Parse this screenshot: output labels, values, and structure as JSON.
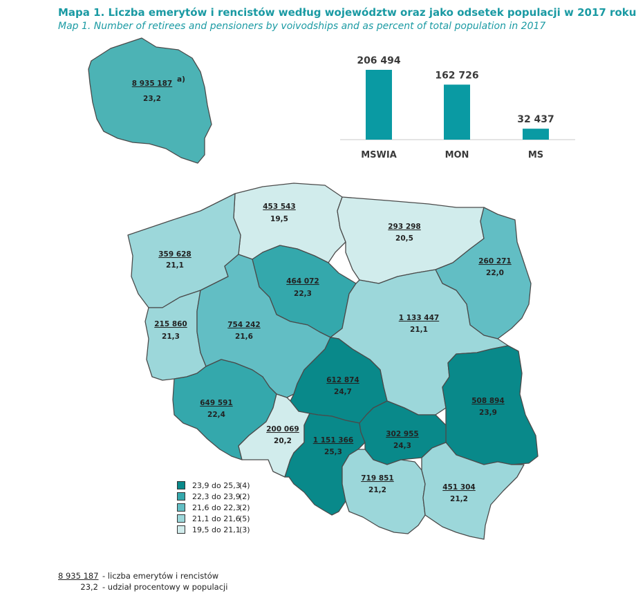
{
  "header": {
    "title_pl": "Mapa 1. Liczba emerytów i rencistów według województw oraz jako odsetek populacji w 2017 roku",
    "title_en": "Map 1. Number of retirees and pensioners by voivodships and as percent of total population in 2017"
  },
  "inset": {
    "count": "8 935 187",
    "pct": "23,2",
    "note": "a)"
  },
  "colors": {
    "class1": "#09898a",
    "class2": "#34a8ac",
    "class3": "#62bec4",
    "class4": "#9cd7da",
    "class5": "#d1ecec",
    "inset": "#4cb3b5",
    "bar": "#0a9aa3"
  },
  "chart_data": {
    "type": "bar",
    "categories": [
      "MSWIA",
      "MON",
      "MS"
    ],
    "values": [
      206494,
      162726,
      32437
    ],
    "labels": [
      "206 494",
      "162 726",
      "32 437"
    ],
    "ylim": [
      0,
      206494
    ]
  },
  "regions": [
    {
      "count": "453 543",
      "pct": "19,5",
      "class": "class5"
    },
    {
      "count": "293 298",
      "pct": "20,5",
      "class": "class5"
    },
    {
      "count": "359 628",
      "pct": "21,1",
      "class": "class4"
    },
    {
      "count": "464 072",
      "pct": "22,3",
      "class": "class2"
    },
    {
      "count": "260 271",
      "pct": "22,0",
      "class": "class3"
    },
    {
      "count": "215 860",
      "pct": "21,3",
      "class": "class4"
    },
    {
      "count": "754 242",
      "pct": "21,6",
      "class": "class3"
    },
    {
      "count": "1 133 447",
      "pct": "21,1",
      "class": "class4"
    },
    {
      "count": "612 874",
      "pct": "24,7",
      "class": "class1"
    },
    {
      "count": "508 894",
      "pct": "23,9",
      "class": "class1"
    },
    {
      "count": "649 591",
      "pct": "22,4",
      "class": "class2"
    },
    {
      "count": "200 069",
      "pct": "20,2",
      "class": "class5"
    },
    {
      "count": "1 151 366",
      "pct": "25,3",
      "class": "class1"
    },
    {
      "count": "302 955",
      "pct": "24,3",
      "class": "class1"
    },
    {
      "count": "719 851",
      "pct": "21,2",
      "class": "class4"
    },
    {
      "count": "451 304",
      "pct": "21,2",
      "class": "class4"
    }
  ],
  "legend": [
    {
      "range": "23,9 do 25,3",
      "n": "(4)",
      "class": "class1"
    },
    {
      "range": "22,3 do 23,9",
      "n": "(2)",
      "class": "class2"
    },
    {
      "range": "21,6 do 22,3",
      "n": "(2)",
      "class": "class3"
    },
    {
      "range": "21,1 do 21,6",
      "n": "(5)",
      "class": "class4"
    },
    {
      "range": "19,5 do 21,1",
      "n": "(3)",
      "class": "class5"
    }
  ],
  "footnote": {
    "count_example": "8 935 187",
    "count_desc": "- liczba emerytów i rencistów",
    "pct_example": "23,2",
    "pct_desc": "- udział procentowy w populacji"
  }
}
